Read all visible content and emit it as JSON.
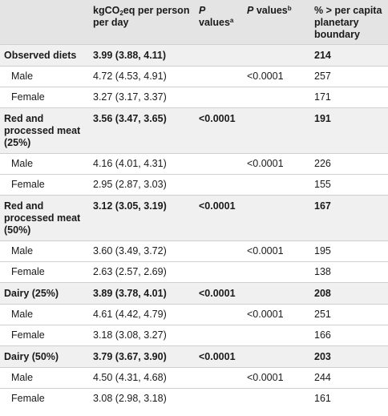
{
  "header": {
    "col1_pre": "kgCO",
    "col1_sub": "2",
    "col1_post": "eq per person per day",
    "col2_p": "P",
    "col2_text": " values",
    "col2_sup": "a",
    "col3_p": "P",
    "col3_text": " values",
    "col3_sup": "b",
    "col4": "% > per capita planetary boundary"
  },
  "rows": [
    {
      "label": "Observed diets",
      "value": "3.99 (3.88, 4.11)",
      "pa": "",
      "pb": "",
      "pct": "214"
    },
    {
      "label": "Male",
      "value": "4.72 (4.53, 4.91)",
      "pa": "",
      "pb": "<0.0001",
      "pct": "257"
    },
    {
      "label": "Female",
      "value": "3.27 (3.17, 3.37)",
      "pa": "",
      "pb": "",
      "pct": "171"
    },
    {
      "label": "Red and processed meat (25%)",
      "value": "3.56 (3.47, 3.65)",
      "pa": "<0.0001",
      "pb": "",
      "pct": "191"
    },
    {
      "label": "Male",
      "value": "4.16 (4.01, 4.31)",
      "pa": "",
      "pb": "<0.0001",
      "pct": "226"
    },
    {
      "label": "Female",
      "value": "2.95 (2.87, 3.03)",
      "pa": "",
      "pb": "",
      "pct": "155"
    },
    {
      "label": "Red and processed meat (50%)",
      "value": "3.12 (3.05, 3.19)",
      "pa": "<0.0001",
      "pb": "",
      "pct": "167"
    },
    {
      "label": "Male",
      "value": "3.60 (3.49, 3.72)",
      "pa": "",
      "pb": "<0.0001",
      "pct": "195"
    },
    {
      "label": "Female",
      "value": "2.63 (2.57, 2.69)",
      "pa": "",
      "pb": "",
      "pct": "138"
    },
    {
      "label": "Dairy (25%)",
      "value": "3.89 (3.78, 4.01)",
      "pa": "<0.0001",
      "pb": "",
      "pct": "208"
    },
    {
      "label": "Male",
      "value": "4.61 (4.42, 4.79)",
      "pa": "",
      "pb": "<0.0001",
      "pct": "251"
    },
    {
      "label": "Female",
      "value": "3.18 (3.08, 3.27)",
      "pa": "",
      "pb": "",
      "pct": "166"
    },
    {
      "label": "Dairy (50%)",
      "value": "3.79 (3.67, 3.90)",
      "pa": "<0.0001",
      "pb": "",
      "pct": "203"
    },
    {
      "label": "Male",
      "value": "4.50 (4.31, 4.68)",
      "pa": "",
      "pb": "<0.0001",
      "pct": "244"
    },
    {
      "label": "Female",
      "value": "3.08 (2.98, 3.18)",
      "pa": "",
      "pb": "",
      "pct": "161"
    }
  ]
}
